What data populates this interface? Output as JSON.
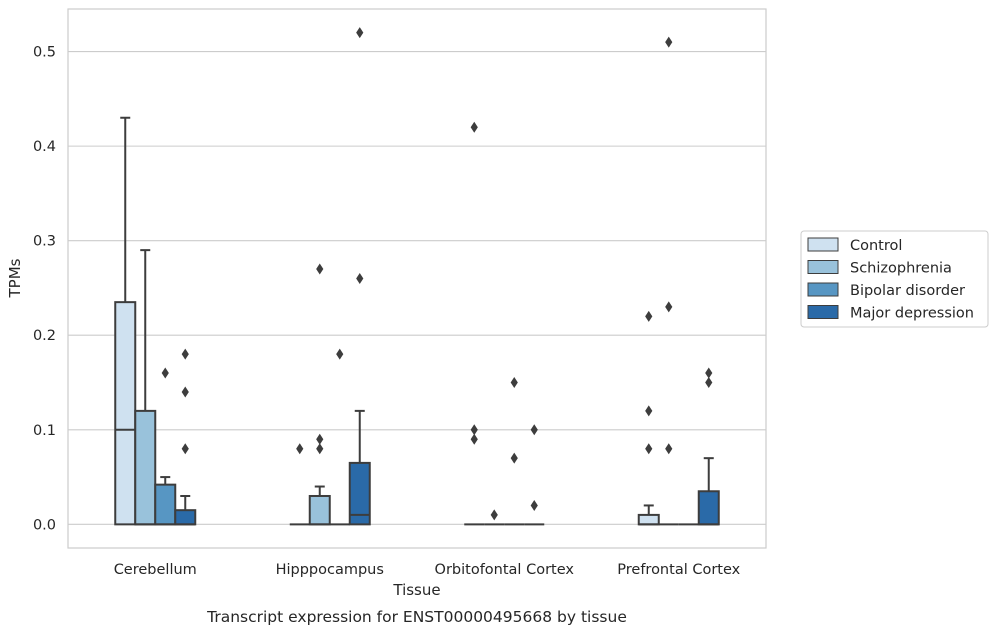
{
  "chart_data": {
    "type": "box",
    "title": "",
    "caption": "Transcript expression for ENST00000495668 by tissue",
    "xlabel": "Tissue",
    "ylabel": "TPMs",
    "ylim": [
      -0.025,
      0.545
    ],
    "yticks": [
      0.0,
      0.1,
      0.2,
      0.3,
      0.4,
      0.5
    ],
    "ytick_labels": [
      "0.0",
      "0.1",
      "0.2",
      "0.3",
      "0.4",
      "0.5"
    ],
    "grid": "horizontal",
    "legend_position": "right",
    "categories": [
      "Cerebellum",
      "Hipppocampus",
      "Orbitofontal Cortex",
      "Prefrontal Cortex"
    ],
    "series": [
      {
        "name": "Control",
        "color": "#cfe1f0",
        "boxes": [
          {
            "whisker_low": 0.0,
            "q1": 0.0,
            "median": 0.1,
            "q3": 0.235,
            "whisker_high": 0.43,
            "outliers": []
          },
          {
            "whisker_low": 0.0,
            "q1": 0.0,
            "median": 0.0,
            "q3": 0.0,
            "whisker_high": 0.0,
            "outliers": [
              0.08
            ]
          },
          {
            "whisker_low": 0.0,
            "q1": 0.0,
            "median": 0.0,
            "q3": 0.0,
            "whisker_high": 0.0,
            "outliers": [
              0.42,
              0.1,
              0.09
            ]
          },
          {
            "whisker_low": 0.0,
            "q1": 0.0,
            "median": 0.0,
            "q3": 0.01,
            "whisker_high": 0.02,
            "outliers": [
              0.22,
              0.12,
              0.08
            ]
          }
        ]
      },
      {
        "name": "Schizophrenia",
        "color": "#99c2db",
        "boxes": [
          {
            "whisker_low": 0.0,
            "q1": 0.0,
            "median": 0.0,
            "q3": 0.12,
            "whisker_high": 0.29,
            "outliers": []
          },
          {
            "whisker_low": 0.0,
            "q1": 0.0,
            "median": 0.0,
            "q3": 0.03,
            "whisker_high": 0.04,
            "outliers": [
              0.27,
              0.09,
              0.08
            ]
          },
          {
            "whisker_low": 0.0,
            "q1": 0.0,
            "median": 0.0,
            "q3": 0.0,
            "whisker_high": 0.0,
            "outliers": [
              0.01
            ]
          },
          {
            "whisker_low": 0.0,
            "q1": 0.0,
            "median": 0.0,
            "q3": 0.0,
            "whisker_high": 0.0,
            "outliers": [
              0.51,
              0.23,
              0.08
            ]
          }
        ]
      },
      {
        "name": "Bipolar disorder",
        "color": "#5796c3",
        "boxes": [
          {
            "whisker_low": 0.0,
            "q1": 0.0,
            "median": 0.0,
            "q3": 0.042,
            "whisker_high": 0.05,
            "outliers": [
              0.16
            ]
          },
          {
            "whisker_low": 0.0,
            "q1": 0.0,
            "median": 0.0,
            "q3": 0.0,
            "whisker_high": 0.0,
            "outliers": [
              0.18
            ]
          },
          {
            "whisker_low": 0.0,
            "q1": 0.0,
            "median": 0.0,
            "q3": 0.0,
            "whisker_high": 0.0,
            "outliers": [
              0.15,
              0.07
            ]
          },
          {
            "whisker_low": 0.0,
            "q1": 0.0,
            "median": 0.0,
            "q3": 0.0,
            "whisker_high": 0.0,
            "outliers": []
          }
        ]
      },
      {
        "name": "Major depression",
        "color": "#2a6aa8",
        "boxes": [
          {
            "whisker_low": 0.0,
            "q1": 0.0,
            "median": 0.0,
            "q3": 0.015,
            "whisker_high": 0.03,
            "outliers": [
              0.18,
              0.14,
              0.08
            ]
          },
          {
            "whisker_low": 0.0,
            "q1": 0.0,
            "median": 0.01,
            "q3": 0.065,
            "whisker_high": 0.12,
            "outliers": [
              0.52,
              0.26
            ]
          },
          {
            "whisker_low": 0.0,
            "q1": 0.0,
            "median": 0.0,
            "q3": 0.0,
            "whisker_high": 0.0,
            "outliers": [
              0.1,
              0.02
            ]
          },
          {
            "whisker_low": 0.0,
            "q1": 0.0,
            "median": 0.0,
            "q3": 0.035,
            "whisker_high": 0.07,
            "outliers": [
              0.16,
              0.15
            ]
          }
        ]
      }
    ]
  }
}
